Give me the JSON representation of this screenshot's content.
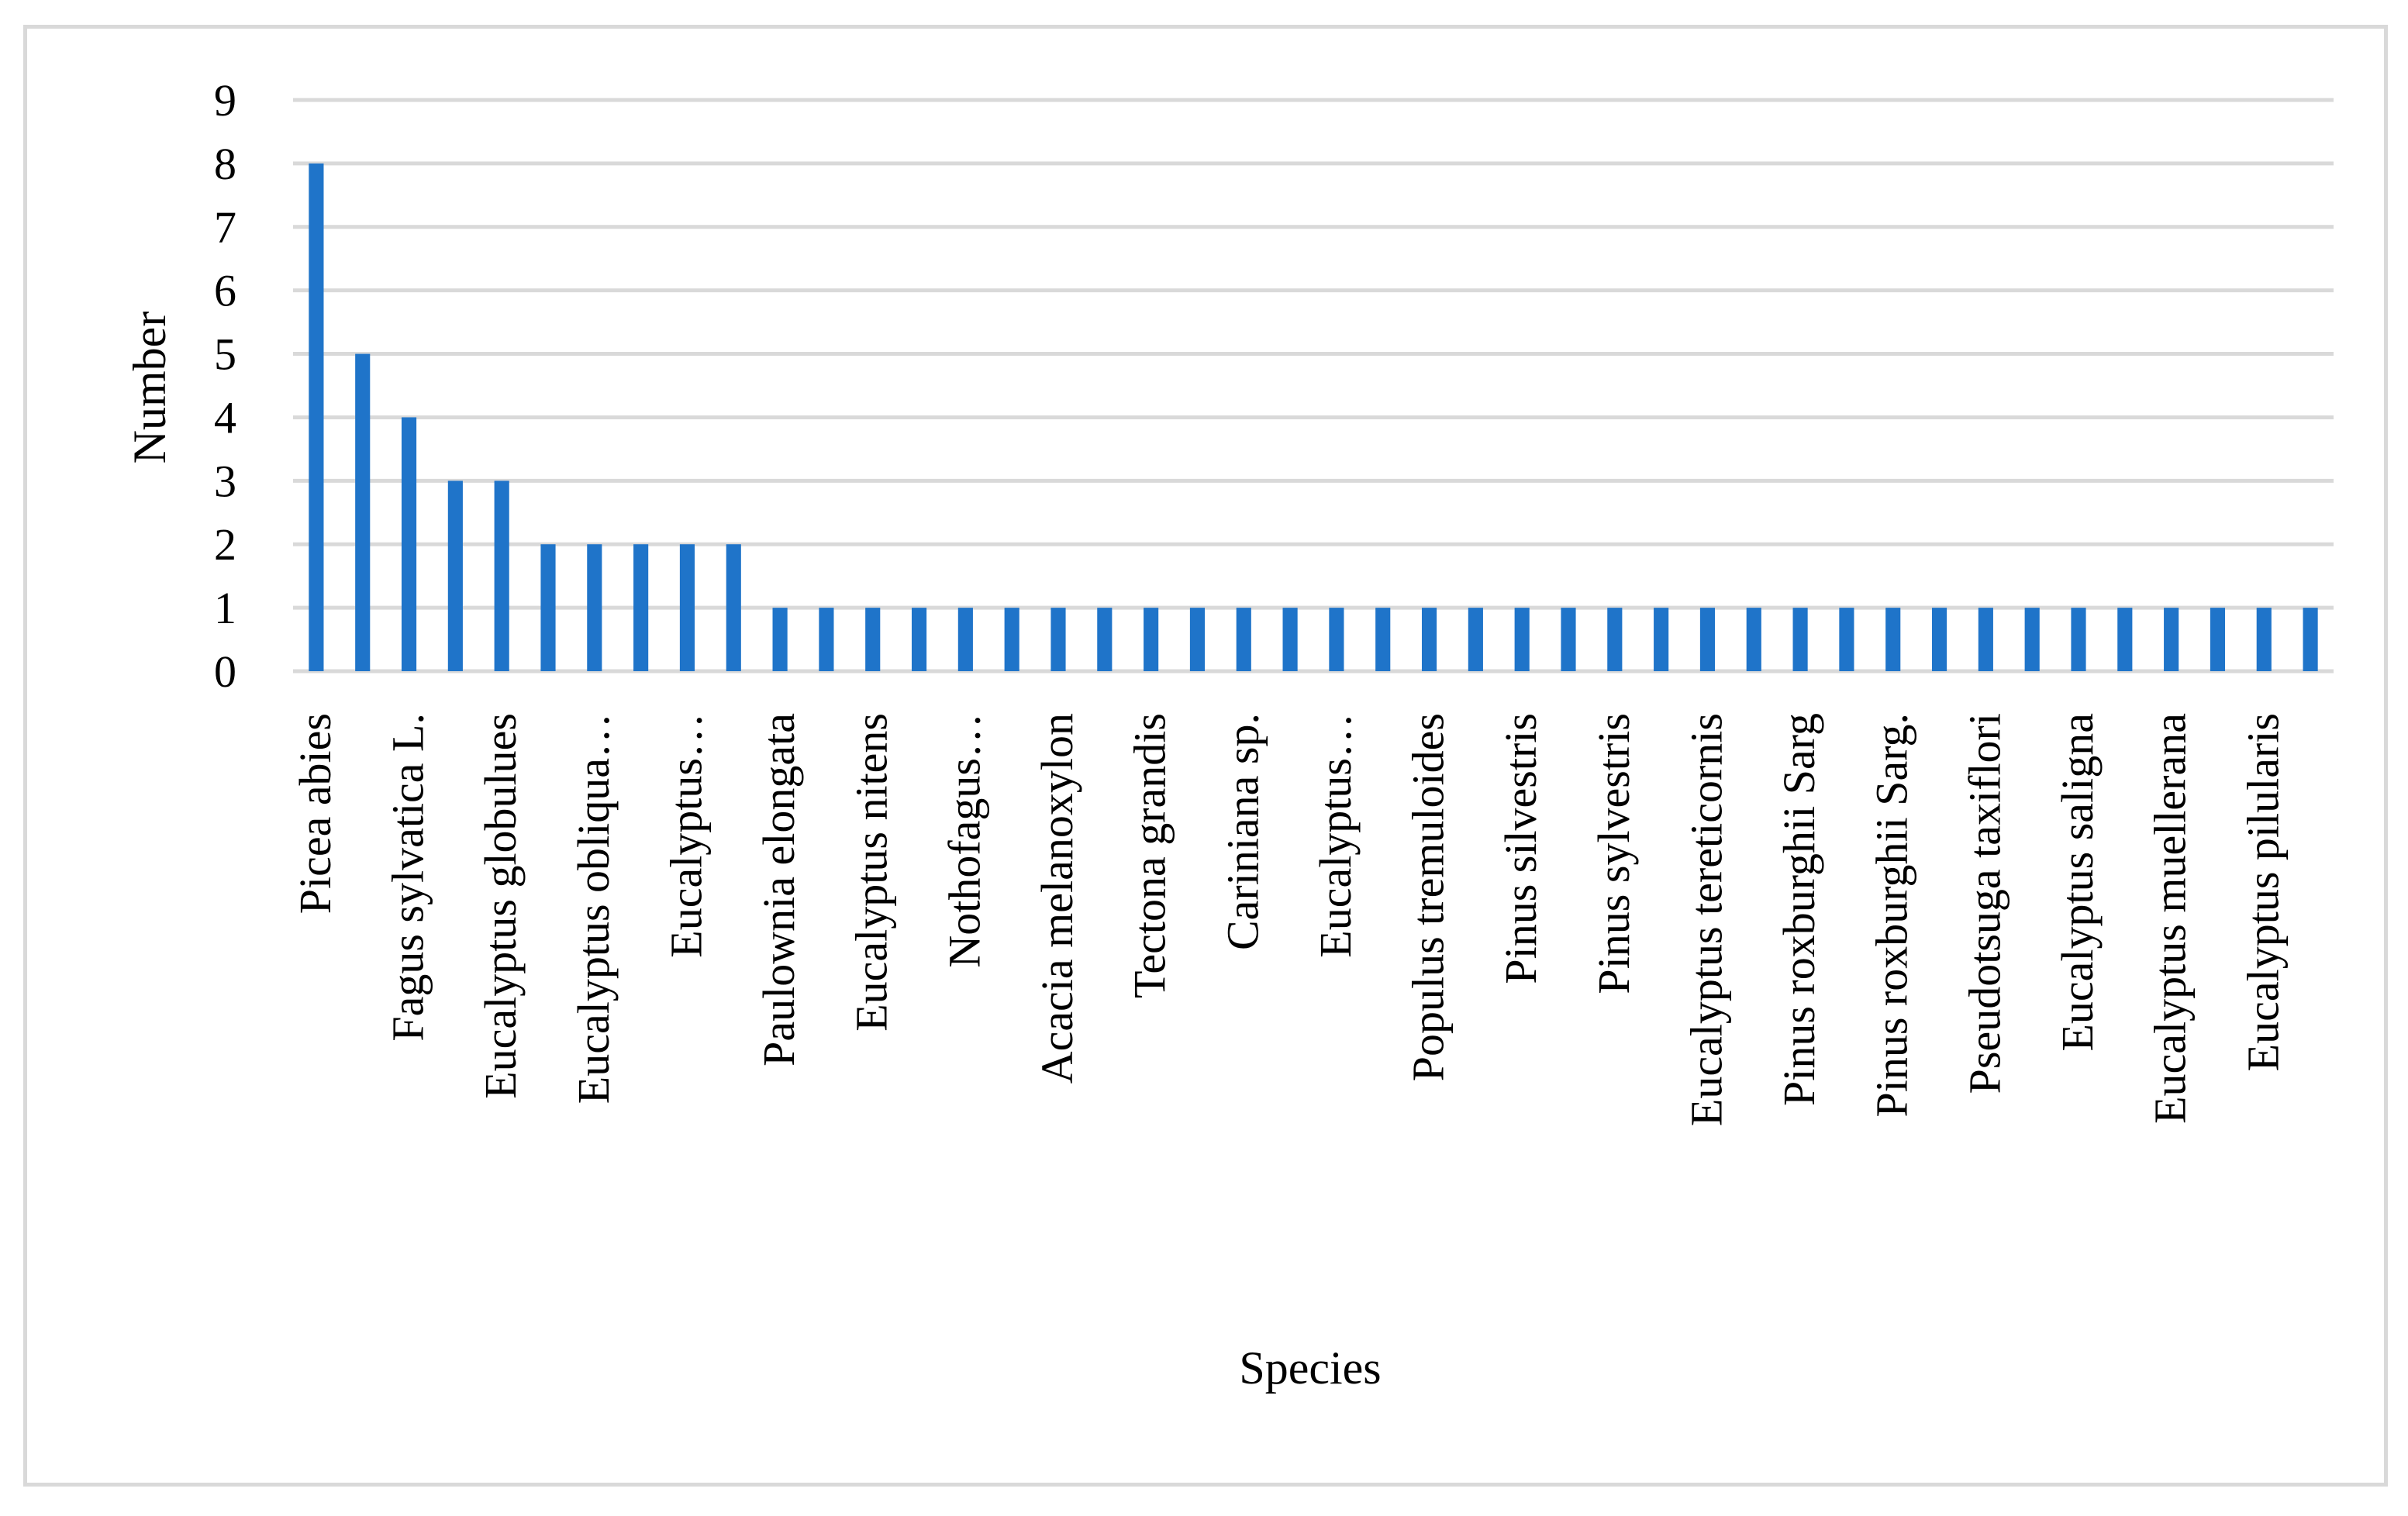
{
  "chart_data": {
    "type": "bar",
    "xlabel": "Species",
    "ylabel": "Number",
    "ylim": [
      0,
      9
    ],
    "yticks": [
      0,
      1,
      2,
      3,
      4,
      5,
      6,
      7,
      8,
      9
    ],
    "grid": true,
    "legend": "none",
    "bar_color": "#1f74c9",
    "categories": [
      "Picea abies",
      "",
      "Fagus sylvatica L.",
      "",
      "Eucalyptus globulues",
      "",
      "Eucalyptus obliqua…",
      "",
      "Eucalyptus…",
      "",
      "Paulownia elongata",
      "",
      "Eucalyptus nitens",
      "",
      "Nothofagus…",
      "",
      "Acacia melanoxylon",
      "",
      "Tectona grandis",
      "",
      "Cariniana sp.",
      "",
      "Eucalyptus…",
      "",
      "Populus tremuloides",
      "",
      "Pinus silvestris",
      "",
      "Pinus sylvestris",
      "",
      "Eucalyptus tereticornis",
      "",
      "Pinus roxburghii Sarg",
      "",
      "Pinus roxburghii Sarg.",
      "",
      "Pseudotsuga taxiflori",
      "",
      "Eucalyptus saligna",
      "",
      "Eucalyptus muellerana",
      "",
      "Eucalyptus pilularis",
      ""
    ],
    "values": [
      8,
      5,
      4,
      3,
      3,
      2,
      2,
      2,
      2,
      2,
      1,
      1,
      1,
      1,
      1,
      1,
      1,
      1,
      1,
      1,
      1,
      1,
      1,
      1,
      1,
      1,
      1,
      1,
      1,
      1,
      1,
      1,
      1,
      1,
      1,
      1,
      1,
      1,
      1,
      1,
      1,
      1,
      1,
      1
    ]
  }
}
